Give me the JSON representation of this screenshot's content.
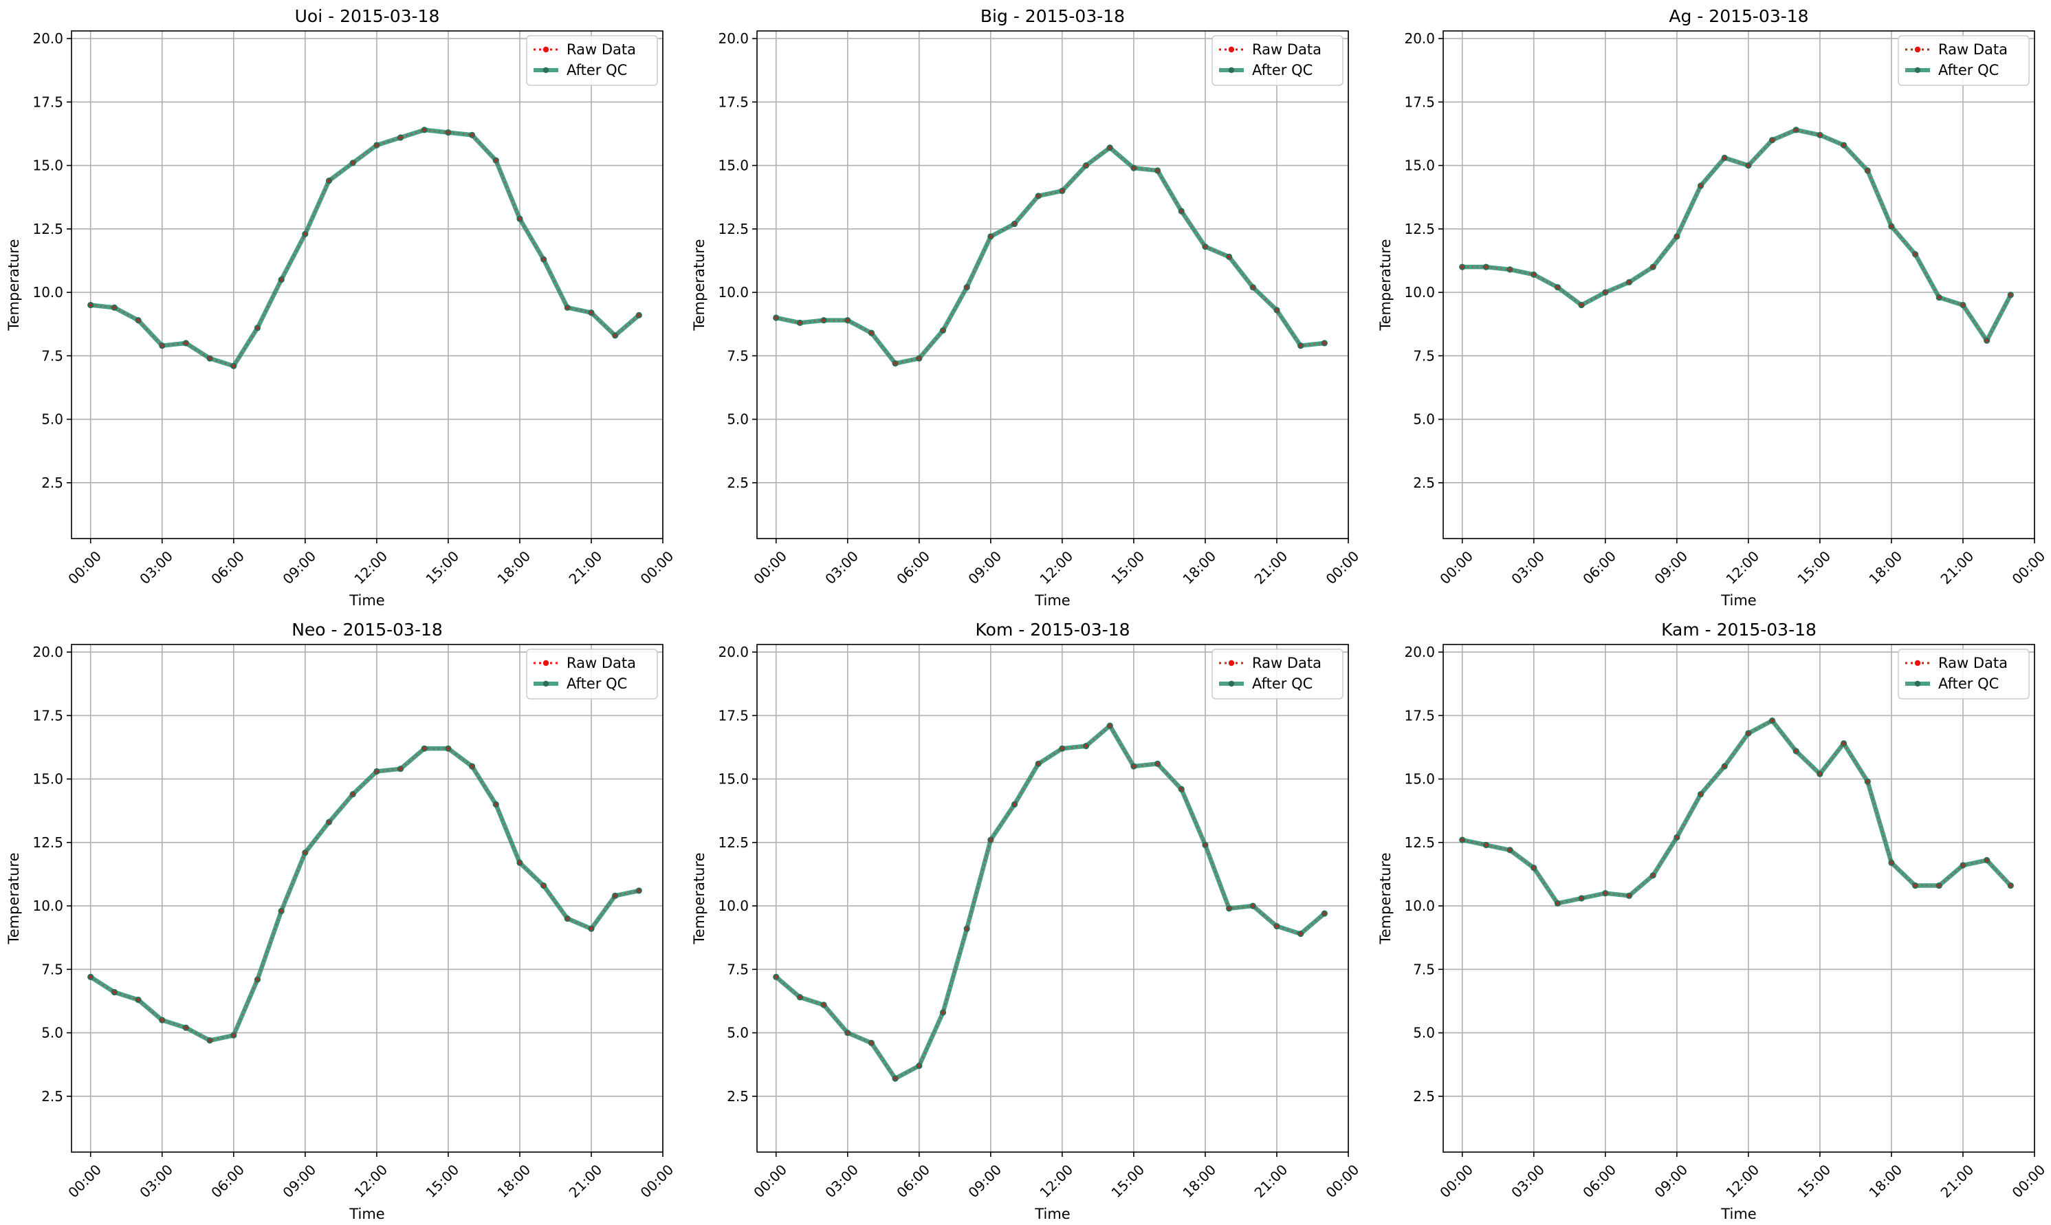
{
  "chart_data": [
    {
      "type": "line",
      "title": "Uoi - 2015-03-18",
      "xlabel": "Time",
      "ylabel": "Temperature",
      "x": [
        "00:00",
        "01:00",
        "02:00",
        "03:00",
        "04:00",
        "05:00",
        "06:00",
        "07:00",
        "08:00",
        "09:00",
        "10:00",
        "11:00",
        "12:00",
        "13:00",
        "14:00",
        "15:00",
        "16:00",
        "17:00",
        "18:00",
        "19:00",
        "20:00",
        "21:00",
        "22:00",
        "23:00"
      ],
      "series": [
        {
          "name": "Raw Data",
          "values": [
            9.5,
            9.4,
            8.9,
            7.9,
            8.0,
            7.4,
            7.1,
            8.6,
            10.5,
            12.3,
            14.4,
            15.1,
            15.8,
            16.1,
            16.4,
            16.3,
            16.2,
            15.2,
            12.9,
            11.3,
            9.4,
            9.2,
            8.3,
            9.1
          ]
        },
        {
          "name": "After QC",
          "values": [
            9.5,
            9.4,
            8.9,
            7.9,
            8.0,
            7.4,
            7.1,
            8.6,
            10.5,
            12.3,
            14.4,
            15.1,
            15.8,
            16.1,
            16.4,
            16.3,
            16.2,
            15.2,
            12.9,
            11.3,
            9.4,
            9.2,
            8.3,
            9.1
          ]
        }
      ]
    },
    {
      "type": "line",
      "title": "Big - 2015-03-18",
      "xlabel": "Time",
      "ylabel": "Temperature",
      "x": [
        "00:00",
        "01:00",
        "02:00",
        "03:00",
        "04:00",
        "05:00",
        "06:00",
        "07:00",
        "08:00",
        "09:00",
        "10:00",
        "11:00",
        "12:00",
        "13:00",
        "14:00",
        "15:00",
        "16:00",
        "17:00",
        "18:00",
        "19:00",
        "20:00",
        "21:00",
        "22:00",
        "23:00"
      ],
      "series": [
        {
          "name": "Raw Data",
          "values": [
            9.0,
            8.8,
            8.9,
            8.9,
            8.4,
            7.2,
            7.4,
            8.5,
            10.2,
            12.2,
            12.7,
            13.8,
            14.0,
            15.0,
            15.7,
            14.9,
            14.8,
            13.2,
            11.8,
            11.4,
            10.2,
            9.3,
            7.9,
            8.0
          ]
        },
        {
          "name": "After QC",
          "values": [
            9.0,
            8.8,
            8.9,
            8.9,
            8.4,
            7.2,
            7.4,
            8.5,
            10.2,
            12.2,
            12.7,
            13.8,
            14.0,
            15.0,
            15.7,
            14.9,
            14.8,
            13.2,
            11.8,
            11.4,
            10.2,
            9.3,
            7.9,
            8.0
          ]
        }
      ]
    },
    {
      "type": "line",
      "title": "Ag - 2015-03-18",
      "xlabel": "Time",
      "ylabel": "Temperature",
      "x": [
        "00:00",
        "01:00",
        "02:00",
        "03:00",
        "04:00",
        "05:00",
        "06:00",
        "07:00",
        "08:00",
        "09:00",
        "10:00",
        "11:00",
        "12:00",
        "13:00",
        "14:00",
        "15:00",
        "16:00",
        "17:00",
        "18:00",
        "19:00",
        "20:00",
        "21:00",
        "22:00",
        "23:00"
      ],
      "series": [
        {
          "name": "Raw Data",
          "values": [
            11.0,
            11.0,
            10.9,
            10.7,
            10.2,
            9.5,
            10.0,
            10.4,
            11.0,
            12.2,
            14.2,
            15.3,
            15.0,
            16.0,
            16.4,
            16.2,
            15.8,
            14.8,
            12.6,
            11.5,
            9.8,
            9.5,
            8.1,
            9.9
          ]
        },
        {
          "name": "After QC",
          "values": [
            11.0,
            11.0,
            10.9,
            10.7,
            10.2,
            9.5,
            10.0,
            10.4,
            11.0,
            12.2,
            14.2,
            15.3,
            15.0,
            16.0,
            16.4,
            16.2,
            15.8,
            14.8,
            12.6,
            11.5,
            9.8,
            9.5,
            8.1,
            9.9
          ]
        }
      ]
    },
    {
      "type": "line",
      "title": "Neo - 2015-03-18",
      "xlabel": "Time",
      "ylabel": "Temperature",
      "x": [
        "00:00",
        "01:00",
        "02:00",
        "03:00",
        "04:00",
        "05:00",
        "06:00",
        "07:00",
        "08:00",
        "09:00",
        "10:00",
        "11:00",
        "12:00",
        "13:00",
        "14:00",
        "15:00",
        "16:00",
        "17:00",
        "18:00",
        "19:00",
        "20:00",
        "21:00",
        "22:00",
        "23:00"
      ],
      "series": [
        {
          "name": "Raw Data",
          "values": [
            7.2,
            6.6,
            6.3,
            5.5,
            5.2,
            4.7,
            4.9,
            7.1,
            9.8,
            12.1,
            13.3,
            14.4,
            15.3,
            15.4,
            16.2,
            16.2,
            15.5,
            14.0,
            11.7,
            10.8,
            9.5,
            9.1,
            10.4,
            10.6
          ]
        },
        {
          "name": "After QC",
          "values": [
            7.2,
            6.6,
            6.3,
            5.5,
            5.2,
            4.7,
            4.9,
            7.1,
            9.8,
            12.1,
            13.3,
            14.4,
            15.3,
            15.4,
            16.2,
            16.2,
            15.5,
            14.0,
            11.7,
            10.8,
            9.5,
            9.1,
            10.4,
            10.6
          ]
        }
      ]
    },
    {
      "type": "line",
      "title": "Kom - 2015-03-18",
      "xlabel": "Time",
      "ylabel": "Temperature",
      "x": [
        "00:00",
        "01:00",
        "02:00",
        "03:00",
        "04:00",
        "05:00",
        "06:00",
        "07:00",
        "08:00",
        "09:00",
        "10:00",
        "11:00",
        "12:00",
        "13:00",
        "14:00",
        "15:00",
        "16:00",
        "17:00",
        "18:00",
        "19:00",
        "20:00",
        "21:00",
        "22:00",
        "23:00"
      ],
      "series": [
        {
          "name": "Raw Data",
          "values": [
            7.2,
            6.4,
            6.1,
            5.0,
            4.6,
            3.2,
            3.7,
            5.8,
            9.1,
            12.6,
            14.0,
            15.6,
            16.2,
            16.3,
            17.1,
            15.5,
            15.6,
            14.6,
            12.4,
            9.9,
            10.0,
            9.2,
            8.9,
            9.7
          ]
        },
        {
          "name": "After QC",
          "values": [
            7.2,
            6.4,
            6.1,
            5.0,
            4.6,
            3.2,
            3.7,
            5.8,
            9.1,
            12.6,
            14.0,
            15.6,
            16.2,
            16.3,
            17.1,
            15.5,
            15.6,
            14.6,
            12.4,
            9.9,
            10.0,
            9.2,
            8.9,
            9.7
          ]
        }
      ]
    },
    {
      "type": "line",
      "title": "Kam - 2015-03-18",
      "xlabel": "Time",
      "ylabel": "Temperature",
      "x": [
        "00:00",
        "01:00",
        "02:00",
        "03:00",
        "04:00",
        "05:00",
        "06:00",
        "07:00",
        "08:00",
        "09:00",
        "10:00",
        "11:00",
        "12:00",
        "13:00",
        "14:00",
        "15:00",
        "16:00",
        "17:00",
        "18:00",
        "19:00",
        "20:00",
        "21:00",
        "22:00",
        "23:00"
      ],
      "series": [
        {
          "name": "Raw Data",
          "values": [
            12.6,
            12.4,
            12.2,
            11.5,
            10.1,
            10.3,
            10.5,
            10.4,
            11.2,
            12.7,
            14.4,
            15.5,
            16.8,
            17.3,
            16.1,
            15.2,
            16.4,
            14.9,
            11.7,
            10.8,
            10.8,
            11.6,
            11.8,
            10.8
          ]
        },
        {
          "name": "After QC",
          "values": [
            12.6,
            12.4,
            12.2,
            11.5,
            10.1,
            10.3,
            10.5,
            10.4,
            11.2,
            12.7,
            14.4,
            15.5,
            16.8,
            17.3,
            16.1,
            15.2,
            16.4,
            14.9,
            11.7,
            10.8,
            10.8,
            11.6,
            11.8,
            10.8
          ]
        }
      ]
    }
  ],
  "shared": {
    "xlim": [
      -0.8,
      24.0
    ],
    "ylim": [
      0.3,
      20.3
    ],
    "yticks": [
      "2.5",
      "5.0",
      "7.5",
      "10.0",
      "12.5",
      "15.0",
      "17.5",
      "20.0"
    ],
    "xticks": [
      "00:00",
      "03:00",
      "06:00",
      "09:00",
      "12:00",
      "15:00",
      "18:00",
      "21:00",
      "00:00"
    ],
    "legend": {
      "entries": [
        "Raw Data",
        "After QC"
      ],
      "placement": "upper right"
    },
    "grid": true,
    "colors": {
      "raw": "#e8120f",
      "qc": "#2a8f6e",
      "qc_marker": "#2c6e56"
    }
  }
}
